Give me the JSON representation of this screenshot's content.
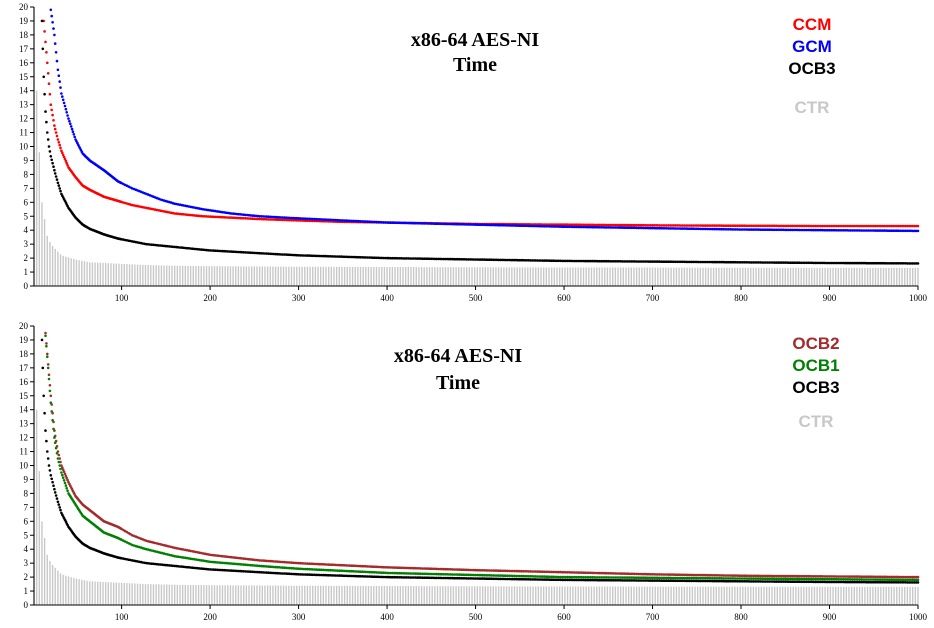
{
  "chart_data": [
    {
      "type": "scatter",
      "title": "x86-64 AES-NI",
      "subtitle": "Time",
      "xlim": [
        1,
        1000
      ],
      "ylim": [
        0,
        20
      ],
      "x_ticks": [
        100,
        200,
        300,
        400,
        500,
        600,
        700,
        800,
        900,
        1000
      ],
      "y_ticks": [
        0,
        1,
        2,
        3,
        4,
        5,
        6,
        7,
        8,
        9,
        10,
        11,
        12,
        13,
        14,
        15,
        16,
        17,
        18,
        19,
        20
      ],
      "legend_position": "top-right",
      "background_series": {
        "name": "CTR",
        "type": "bar",
        "color": "#c8c8c8",
        "x": [
          1,
          5,
          10,
          16,
          20,
          32,
          48,
          64,
          96,
          128,
          160,
          200,
          256,
          300,
          400,
          500,
          600,
          700,
          800,
          900,
          1000
        ],
        "values": [
          20,
          12,
          6,
          3.6,
          3.0,
          2.2,
          1.9,
          1.7,
          1.6,
          1.5,
          1.45,
          1.42,
          1.4,
          1.38,
          1.36,
          1.34,
          1.33,
          1.32,
          1.31,
          1.3,
          1.3
        ]
      },
      "series": [
        {
          "name": "CCM",
          "color": "#ff0000",
          "x": [
            12,
            14,
            16,
            18,
            20,
            24,
            28,
            32,
            40,
            48,
            56,
            64,
            80,
            96,
            112,
            128,
            144,
            160,
            192,
            224,
            256,
            300,
            350,
            400,
            500,
            600,
            700,
            800,
            900,
            1000
          ],
          "values": [
            19.0,
            17.5,
            16.0,
            14.5,
            13.0,
            11.5,
            10.5,
            9.7,
            8.5,
            7.8,
            7.2,
            6.9,
            6.4,
            6.1,
            5.8,
            5.6,
            5.4,
            5.2,
            5.0,
            4.9,
            4.8,
            4.7,
            4.6,
            4.55,
            4.45,
            4.4,
            4.35,
            4.32,
            4.3,
            4.3
          ]
        },
        {
          "name": "GCM",
          "color": "#0000ff",
          "x": [
            20,
            24,
            28,
            32,
            40,
            48,
            56,
            64,
            80,
            96,
            112,
            128,
            144,
            160,
            192,
            224,
            256,
            300,
            350,
            400,
            500,
            600,
            700,
            800,
            900,
            1000
          ],
          "values": [
            19.8,
            18.0,
            15.5,
            13.8,
            12.0,
            10.5,
            9.5,
            9.0,
            8.3,
            7.5,
            7.0,
            6.6,
            6.2,
            5.9,
            5.5,
            5.2,
            5.0,
            4.85,
            4.7,
            4.55,
            4.4,
            4.25,
            4.15,
            4.05,
            4.0,
            3.95
          ]
        },
        {
          "name": "OCB3",
          "color": "#000000",
          "x": [
            10,
            12,
            14,
            16,
            18,
            20,
            24,
            28,
            32,
            40,
            48,
            56,
            64,
            80,
            96,
            112,
            128,
            160,
            200,
            256,
            300,
            400,
            500,
            600,
            700,
            800,
            900,
            1000
          ],
          "values": [
            19.0,
            15.0,
            12.5,
            11.0,
            10.0,
            9.3,
            8.3,
            7.4,
            6.6,
            5.6,
            4.9,
            4.4,
            4.1,
            3.7,
            3.4,
            3.2,
            3.0,
            2.8,
            2.55,
            2.35,
            2.2,
            2.0,
            1.9,
            1.8,
            1.75,
            1.7,
            1.65,
            1.62
          ]
        }
      ]
    },
    {
      "type": "scatter",
      "title": "x86-64 AES-NI",
      "subtitle": "Time",
      "xlim": [
        1,
        1000
      ],
      "ylim": [
        0,
        20
      ],
      "x_ticks": [
        100,
        200,
        300,
        400,
        500,
        600,
        700,
        800,
        900,
        1000
      ],
      "y_ticks": [
        0,
        1,
        2,
        3,
        4,
        5,
        6,
        7,
        8,
        9,
        10,
        11,
        12,
        13,
        14,
        15,
        16,
        17,
        18,
        19,
        20
      ],
      "legend_position": "top-right",
      "background_series": {
        "name": "CTR",
        "type": "bar",
        "color": "#c8c8c8",
        "x": [
          1,
          5,
          10,
          16,
          20,
          32,
          48,
          64,
          96,
          128,
          160,
          200,
          256,
          300,
          400,
          500,
          600,
          700,
          800,
          900,
          1000
        ],
        "values": [
          20,
          12,
          6,
          3.6,
          3.0,
          2.2,
          1.9,
          1.7,
          1.6,
          1.5,
          1.45,
          1.42,
          1.4,
          1.38,
          1.36,
          1.34,
          1.33,
          1.32,
          1.31,
          1.3,
          1.3
        ]
      },
      "series": [
        {
          "name": "OCB2",
          "color": "#a52a2a",
          "x": [
            14,
            16,
            18,
            20,
            24,
            28,
            32,
            40,
            48,
            56,
            64,
            80,
            96,
            112,
            128,
            160,
            200,
            256,
            300,
            400,
            500,
            600,
            700,
            800,
            900,
            1000
          ],
          "values": [
            19.5,
            18.0,
            16.5,
            15.0,
            12.5,
            11.0,
            10.0,
            8.8,
            7.8,
            7.2,
            6.8,
            6.0,
            5.6,
            5.0,
            4.6,
            4.1,
            3.6,
            3.2,
            3.0,
            2.7,
            2.5,
            2.35,
            2.2,
            2.1,
            2.05,
            2.0
          ]
        },
        {
          "name": "OCB1",
          "color": "#008000",
          "x": [
            14,
            16,
            18,
            20,
            24,
            28,
            32,
            40,
            48,
            56,
            64,
            80,
            96,
            112,
            128,
            160,
            200,
            256,
            300,
            400,
            500,
            600,
            700,
            800,
            900,
            1000
          ],
          "values": [
            19.3,
            17.8,
            16.2,
            14.5,
            12.0,
            10.5,
            9.5,
            8.0,
            7.2,
            6.4,
            6.0,
            5.2,
            4.8,
            4.3,
            4.0,
            3.5,
            3.1,
            2.8,
            2.6,
            2.3,
            2.15,
            2.0,
            1.95,
            1.9,
            1.85,
            1.8
          ]
        },
        {
          "name": "OCB3",
          "color": "#000000",
          "x": [
            10,
            12,
            14,
            16,
            18,
            20,
            24,
            28,
            32,
            40,
            48,
            56,
            64,
            80,
            96,
            112,
            128,
            160,
            200,
            256,
            300,
            400,
            500,
            600,
            700,
            800,
            900,
            1000
          ],
          "values": [
            19.0,
            15.0,
            12.5,
            11.0,
            10.0,
            9.3,
            8.3,
            7.4,
            6.6,
            5.6,
            4.9,
            4.4,
            4.1,
            3.7,
            3.4,
            3.2,
            3.0,
            2.8,
            2.55,
            2.35,
            2.2,
            2.0,
            1.9,
            1.8,
            1.75,
            1.7,
            1.65,
            1.62
          ]
        }
      ]
    }
  ]
}
